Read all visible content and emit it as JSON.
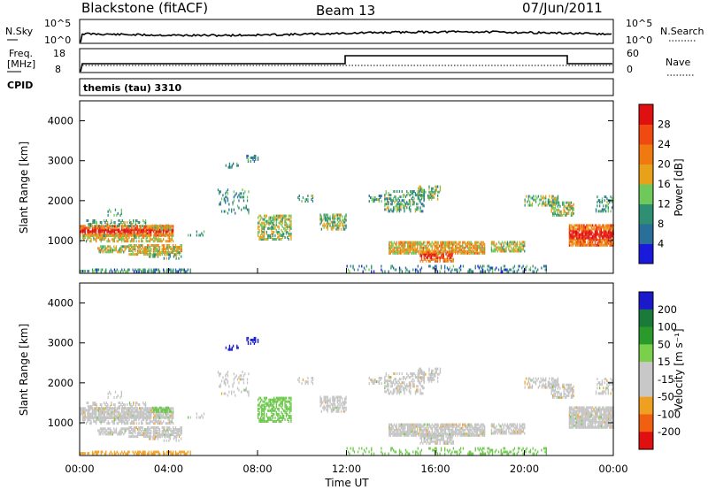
{
  "header": {
    "station": "Blackstone (fitACF)",
    "beam": "Beam 13",
    "date": "07/Jun/2011",
    "program": "themis (tau) 3310"
  },
  "strips": {
    "nsky_label": "N.Sky",
    "nsearch_label": "N.Search",
    "freq_label": "Freq.",
    "freq_unit": "[MHz]",
    "nave_label": "Nave",
    "cpid_label": "CPID",
    "nsky_ticks": [
      "10^5",
      "10^0"
    ],
    "nsearch_ticks": [
      "10^5",
      "10^0"
    ],
    "freq_ticks": [
      "18",
      "8"
    ],
    "nave_ticks": [
      "60",
      "0"
    ]
  },
  "chart_data": [
    {
      "type": "heatmap",
      "panel": "power",
      "xlabel": "",
      "ylabel": "Slant Range [km]",
      "x_range_hours": [
        0,
        24
      ],
      "ylim": [
        180,
        4500
      ],
      "yticks": [
        1000,
        2000,
        3000,
        4000
      ],
      "colorbar": {
        "label": "Power [dB]",
        "range": [
          0,
          32
        ],
        "ticks": [
          4,
          8,
          12,
          16,
          20,
          24,
          28
        ],
        "colors": [
          "#1a1adc",
          "#2a6e9a",
          "#2f8f72",
          "#6ec85a",
          "#e8a21a",
          "#f07a10",
          "#f04a10",
          "#e01010"
        ]
      }
    },
    {
      "type": "heatmap",
      "panel": "velocity",
      "xlabel": "Time UT",
      "ylabel": "Slant Range [km]",
      "x_range_hours": [
        0,
        24
      ],
      "ylim": [
        180,
        4500
      ],
      "yticks": [
        1000,
        2000,
        3000,
        4000
      ],
      "xticks": [
        "00:00",
        "04:00",
        "08:00",
        "12:00",
        "16:00",
        "20:00",
        "00:00"
      ],
      "colorbar": {
        "label": "Velocity [m s⁻¹]",
        "ticks": [
          "200",
          "100",
          "50",
          "15",
          "-15",
          "-50",
          "-100",
          "-200"
        ],
        "colors": [
          "#1a1acc",
          "#1a7a3a",
          "#2a9a2a",
          "#7ad04a",
          "#c8c8c8",
          "#c8c8c8",
          "#f0a020",
          "#f06010",
          "#e01010"
        ]
      }
    }
  ],
  "scatter_regions": [
    {
      "t0": 0.0,
      "t1": 0.4,
      "r0": 200,
      "r1": 240,
      "d": 0.9,
      "pw": 0.25,
      "vel": "orange"
    },
    {
      "t0": 0.0,
      "t1": 4.2,
      "r0": 1100,
      "r1": 1330,
      "d": 0.85,
      "pw": 0.75,
      "vel": "gray"
    },
    {
      "t0": 0.0,
      "t1": 4.2,
      "r0": 950,
      "r1": 1100,
      "d": 0.55,
      "pw": 0.55,
      "vel": "gray"
    },
    {
      "t0": 0.3,
      "t1": 3.0,
      "r0": 1330,
      "r1": 1480,
      "d": 0.35,
      "pw": 0.35,
      "vel": "gray"
    },
    {
      "t0": 3.2,
      "t1": 4.1,
      "r0": 1250,
      "r1": 1380,
      "d": 0.55,
      "pw": 0.55,
      "vel": "green"
    },
    {
      "t0": 0.8,
      "t1": 2.2,
      "r0": 680,
      "r1": 860,
      "d": 0.55,
      "pw": 0.5,
      "vel": "gray"
    },
    {
      "t0": 2.2,
      "t1": 4.6,
      "r0": 620,
      "r1": 860,
      "d": 0.7,
      "pw": 0.55,
      "vel": "gray"
    },
    {
      "t0": 3.0,
      "t1": 4.6,
      "r0": 520,
      "r1": 620,
      "d": 0.35,
      "pw": 0.35,
      "vel": "gray"
    },
    {
      "t0": 0.5,
      "t1": 5.0,
      "r0": 190,
      "r1": 260,
      "d": 0.5,
      "pw": 0.25,
      "vel": "orange"
    },
    {
      "t0": 1.2,
      "t1": 1.9,
      "r0": 1600,
      "r1": 1760,
      "d": 0.3,
      "pw": 0.3,
      "vel": "gray"
    },
    {
      "t0": 4.8,
      "t1": 5.6,
      "r0": 1100,
      "r1": 1200,
      "d": 0.2,
      "pw": 0.3,
      "vel": "gray"
    },
    {
      "t0": 6.2,
      "t1": 7.6,
      "r0": 1650,
      "r1": 2250,
      "d": 0.18,
      "pw": 0.3,
      "vel": "gray"
    },
    {
      "t0": 6.5,
      "t1": 7.2,
      "r0": 2800,
      "r1": 2900,
      "d": 0.4,
      "pw": 0.25,
      "vel": "blue"
    },
    {
      "t0": 7.5,
      "t1": 8.0,
      "r0": 2950,
      "r1": 3100,
      "d": 0.4,
      "pw": 0.25,
      "vel": "blue"
    },
    {
      "t0": 8.0,
      "t1": 9.5,
      "r0": 1000,
      "r1": 1600,
      "d": 0.55,
      "pw": 0.45,
      "vel": "green"
    },
    {
      "t0": 9.8,
      "t1": 10.5,
      "r0": 1950,
      "r1": 2100,
      "d": 0.3,
      "pw": 0.3,
      "vel": "gray"
    },
    {
      "t0": 10.8,
      "t1": 12.0,
      "r0": 1250,
      "r1": 1650,
      "d": 0.55,
      "pw": 0.4,
      "vel": "gray"
    },
    {
      "t0": 13.0,
      "t1": 13.6,
      "r0": 1950,
      "r1": 2100,
      "d": 0.4,
      "pw": 0.3,
      "vel": "gray"
    },
    {
      "t0": 13.7,
      "t1": 15.5,
      "r0": 1700,
      "r1": 2200,
      "d": 0.4,
      "pw": 0.35,
      "vel": "gray"
    },
    {
      "t0": 15.2,
      "t1": 16.2,
      "r0": 2000,
      "r1": 2350,
      "d": 0.45,
      "pw": 0.4,
      "vel": "gray"
    },
    {
      "t0": 13.9,
      "t1": 18.2,
      "r0": 650,
      "r1": 950,
      "d": 0.8,
      "pw": 0.6,
      "vel": "gray"
    },
    {
      "t0": 15.3,
      "t1": 16.8,
      "r0": 450,
      "r1": 700,
      "d": 0.7,
      "pw": 0.7,
      "vel": "gray"
    },
    {
      "t0": 18.5,
      "t1": 20.0,
      "r0": 700,
      "r1": 950,
      "d": 0.7,
      "pw": 0.5,
      "vel": "gray"
    },
    {
      "t0": 12.0,
      "t1": 21.0,
      "r0": 190,
      "r1": 330,
      "d": 0.25,
      "pw": 0.2,
      "vel": "green"
    },
    {
      "t0": 20.0,
      "t1": 21.5,
      "r0": 1850,
      "r1": 2100,
      "d": 0.5,
      "pw": 0.4,
      "vel": "gray"
    },
    {
      "t0": 21.2,
      "t1": 22.2,
      "r0": 1600,
      "r1": 1950,
      "d": 0.55,
      "pw": 0.45,
      "vel": "gray"
    },
    {
      "t0": 22.0,
      "t1": 24.0,
      "r0": 850,
      "r1": 1350,
      "d": 0.88,
      "pw": 0.75,
      "vel": "gray"
    },
    {
      "t0": 23.2,
      "t1": 24.0,
      "r0": 1700,
      "r1": 2100,
      "d": 0.3,
      "pw": 0.3,
      "vel": "gray"
    }
  ]
}
